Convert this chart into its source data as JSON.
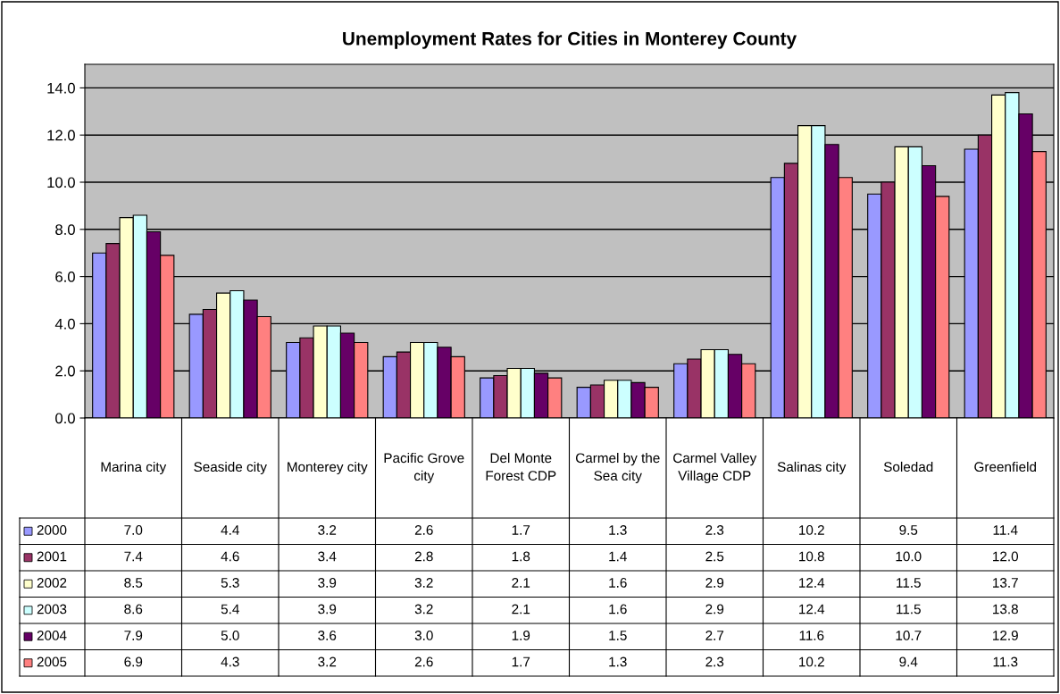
{
  "chart_data": {
    "type": "bar",
    "title": "Unemployment Rates for Cities in Monterey County",
    "categories": [
      "Marina city",
      "Seaside city",
      "Monterey city",
      "Pacific Grove city",
      "Del Monte Forest CDP",
      "Carmel by the Sea city",
      "Carmel Valley Village CDP",
      "Salinas city",
      "Soledad",
      "Greenfield"
    ],
    "series": [
      {
        "name": "2000",
        "color": "#9999ff",
        "values": [
          7.0,
          4.4,
          3.2,
          2.6,
          1.7,
          1.3,
          2.3,
          10.2,
          9.5,
          11.4
        ],
        "value_labels": [
          "7.0",
          "4.4",
          "3.2",
          "2.6",
          "1.7",
          "1.3",
          "2.3",
          "10.2",
          "9.5",
          "11.4"
        ]
      },
      {
        "name": "2001",
        "color": "#993366",
        "values": [
          7.4,
          4.6,
          3.4,
          2.8,
          1.8,
          1.4,
          2.5,
          10.8,
          10.0,
          12.0
        ],
        "value_labels": [
          "7.4",
          "4.6",
          "3.4",
          "2.8",
          "1.8",
          "1.4",
          "2.5",
          "10.8",
          "10.0",
          "12.0"
        ]
      },
      {
        "name": "2002",
        "color": "#ffffcc",
        "values": [
          8.5,
          5.3,
          3.9,
          3.2,
          2.1,
          1.6,
          2.9,
          12.4,
          11.5,
          13.7
        ],
        "value_labels": [
          "8.5",
          "5.3",
          "3.9",
          "3.2",
          "2.1",
          "1.6",
          "2.9",
          "12.4",
          "11.5",
          "13.7"
        ]
      },
      {
        "name": "2003",
        "color": "#ccffff",
        "values": [
          8.6,
          5.4,
          3.9,
          3.2,
          2.1,
          1.6,
          2.9,
          12.4,
          11.5,
          13.8
        ],
        "value_labels": [
          "8.6",
          "5.4",
          "3.9",
          "3.2",
          "2.1",
          "1.6",
          "2.9",
          "12.4",
          "11.5",
          "13.8"
        ]
      },
      {
        "name": "2004",
        "color": "#660066",
        "values": [
          7.9,
          5.0,
          3.6,
          3.0,
          1.9,
          1.5,
          2.7,
          11.6,
          10.7,
          12.9
        ],
        "value_labels": [
          "7.9",
          "5.0",
          "3.6",
          "3.0",
          "1.9",
          "1.5",
          "2.7",
          "11.6",
          "10.7",
          "12.9"
        ]
      },
      {
        "name": "2005",
        "color": "#ff8080",
        "values": [
          6.9,
          4.3,
          3.2,
          2.6,
          1.7,
          1.3,
          2.3,
          10.2,
          9.4,
          11.3
        ],
        "value_labels": [
          "6.9",
          "4.3",
          "3.2",
          "2.6",
          "1.7",
          "1.3",
          "2.3",
          "10.2",
          "9.4",
          "11.3"
        ]
      }
    ],
    "ylim": [
      0,
      15
    ],
    "yticks": [
      {
        "value": 0,
        "label": "0.0"
      },
      {
        "value": 2,
        "label": "2.0"
      },
      {
        "value": 4,
        "label": "4.0"
      },
      {
        "value": 6,
        "label": "6.0"
      },
      {
        "value": 8,
        "label": "8.0"
      },
      {
        "value": 10,
        "label": "10.0"
      },
      {
        "value": 12,
        "label": "12.0"
      },
      {
        "value": 14,
        "label": "14.0"
      }
    ],
    "grid": "y",
    "legend": "bottom left"
  }
}
